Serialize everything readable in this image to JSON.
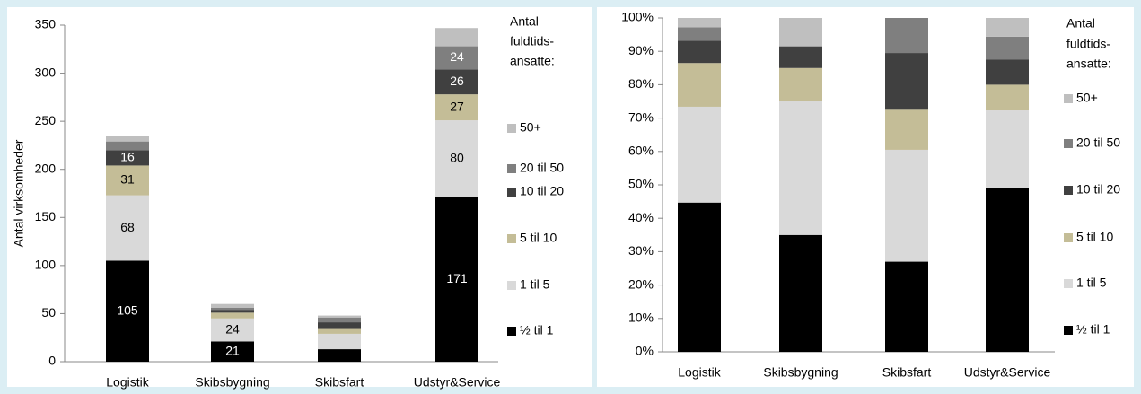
{
  "chart_data": [
    {
      "type": "stacked_bar",
      "y_label": "Antal virksomheder",
      "legend_title": [
        "Antal",
        "fuldtids-",
        "ansatte:"
      ],
      "categories": [
        "Logistik",
        "Skibsbygning",
        "Skibsfart",
        "Udstyr&Service"
      ],
      "ylim": [
        0,
        350
      ],
      "yticks": [
        0,
        50,
        100,
        150,
        200,
        250,
        300,
        350
      ],
      "series": [
        {
          "name": "½ til 1",
          "color": "#000000",
          "values": [
            105,
            21,
            13,
            171
          ],
          "value_labels": [
            "105",
            "21",
            null,
            "171"
          ]
        },
        {
          "name": "1 til 5",
          "color": "#d9d9d9",
          "values": [
            68,
            24,
            16,
            80
          ],
          "value_labels": [
            "68",
            "24",
            null,
            "80"
          ]
        },
        {
          "name": "5 til 10",
          "color": "#c4bd97",
          "values": [
            31,
            6,
            5,
            27
          ],
          "value_labels": [
            "31",
            null,
            null,
            "27"
          ]
        },
        {
          "name": "10 til 20",
          "color": "#404040",
          "values": [
            16,
            3,
            7,
            26
          ],
          "value_labels": [
            "16",
            null,
            null,
            "26"
          ]
        },
        {
          "name": "20 til 50",
          "color": "#7f7f7f",
          "values": [
            9,
            2,
            5,
            24
          ],
          "value_labels": [
            null,
            null,
            null,
            "24"
          ]
        },
        {
          "name": "50+",
          "color": "#bfbfbf",
          "values": [
            6,
            4,
            2,
            19
          ],
          "value_labels": [
            null,
            null,
            null,
            null
          ]
        }
      ]
    },
    {
      "type": "stacked_bar",
      "legend_title": [
        "Antal",
        "fuldtids-",
        "ansatte:"
      ],
      "categories": [
        "Logistik",
        "Skibsbygning",
        "Skibsfart",
        "Udstyr&Service"
      ],
      "ylim": [
        0,
        100
      ],
      "yticks": [
        {
          "value": 0,
          "label": "0%"
        },
        {
          "value": 10,
          "label": "10%"
        },
        {
          "value": 20,
          "label": "20%"
        },
        {
          "value": 30,
          "label": "30%"
        },
        {
          "value": 40,
          "label": "40%"
        },
        {
          "value": 50,
          "label": "50%"
        },
        {
          "value": 60,
          "label": "60%"
        },
        {
          "value": 70,
          "label": "70%"
        },
        {
          "value": 80,
          "label": "80%"
        },
        {
          "value": 90,
          "label": "90%"
        },
        {
          "value": 100,
          "label": "100%"
        }
      ],
      "series": [
        {
          "name": "½ til 1",
          "color": "#000000",
          "values": [
            44.7,
            35,
            27,
            49.2
          ]
        },
        {
          "name": "1 til 5",
          "color": "#d9d9d9",
          "values": [
            28.7,
            40,
            33.5,
            23.1
          ]
        },
        {
          "name": "5 til 10",
          "color": "#c4bd97",
          "values": [
            13.1,
            10,
            12,
            7.7
          ]
        },
        {
          "name": "10 til 20",
          "color": "#404040",
          "values": [
            6.7,
            6.5,
            17,
            7.5
          ]
        },
        {
          "name": "20 til 50",
          "color": "#7f7f7f",
          "values": [
            4,
            0,
            10.5,
            6.9
          ]
        },
        {
          "name": "50+",
          "color": "#bfbfbf",
          "values": [
            2.8,
            8.5,
            0,
            5.6
          ]
        }
      ]
    }
  ]
}
